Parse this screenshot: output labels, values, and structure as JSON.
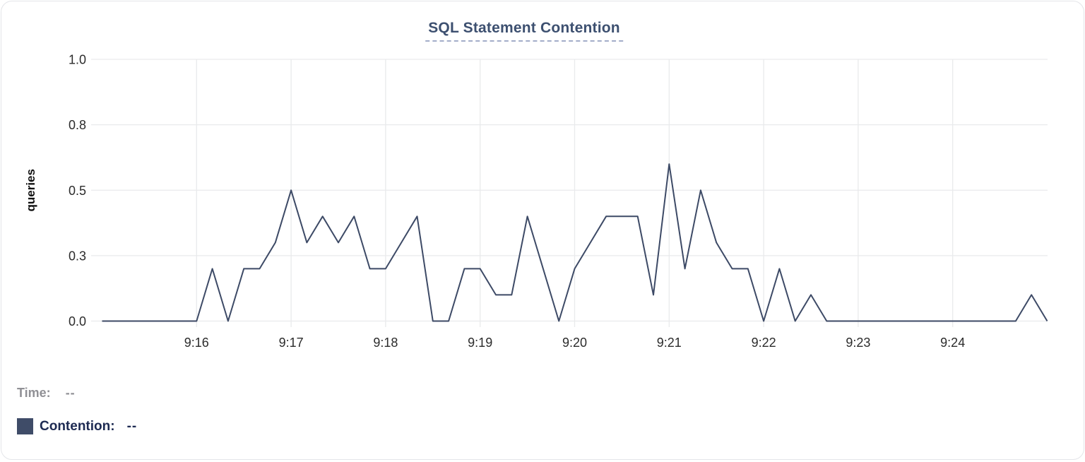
{
  "card": {
    "title": "SQL Statement Contention"
  },
  "chart_data": {
    "type": "line",
    "title": "SQL Statement Contention",
    "xlabel": "",
    "ylabel": "queries",
    "grid": true,
    "legend_position": "bottom-left",
    "series_name": "Contention",
    "ylim": [
      0,
      1
    ],
    "interval_seconds": 10,
    "x_start": "9:15:00",
    "x_end": "9:25:00",
    "y_ticks": [
      {
        "label": "0.0",
        "value": 0
      },
      {
        "label": "0.3",
        "value": 0.25
      },
      {
        "label": "0.5",
        "value": 0.5
      },
      {
        "label": "0.8",
        "value": 0.75
      },
      {
        "label": "1.0",
        "value": 1
      }
    ],
    "x_ticks": [
      {
        "label": "9:16",
        "seconds": 60
      },
      {
        "label": "9:17",
        "seconds": 120
      },
      {
        "label": "9:18",
        "seconds": 180
      },
      {
        "label": "9:19",
        "seconds": 240
      },
      {
        "label": "9:20",
        "seconds": 300
      },
      {
        "label": "9:21",
        "seconds": 360
      },
      {
        "label": "9:22",
        "seconds": 420
      },
      {
        "label": "9:23",
        "seconds": 480
      },
      {
        "label": "9:24",
        "seconds": 540
      }
    ],
    "points": [
      {
        "t": "9:15:00",
        "v": 0
      },
      {
        "t": "9:15:10",
        "v": 0
      },
      {
        "t": "9:15:20",
        "v": 0
      },
      {
        "t": "9:15:30",
        "v": 0
      },
      {
        "t": "9:15:40",
        "v": 0
      },
      {
        "t": "9:15:50",
        "v": 0
      },
      {
        "t": "9:16:00",
        "v": 0
      },
      {
        "t": "9:16:10",
        "v": 0.2
      },
      {
        "t": "9:16:20",
        "v": 0
      },
      {
        "t": "9:16:30",
        "v": 0.2
      },
      {
        "t": "9:16:40",
        "v": 0.2
      },
      {
        "t": "9:16:50",
        "v": 0.3
      },
      {
        "t": "9:17:00",
        "v": 0.5
      },
      {
        "t": "9:17:10",
        "v": 0.3
      },
      {
        "t": "9:17:20",
        "v": 0.4
      },
      {
        "t": "9:17:30",
        "v": 0.3
      },
      {
        "t": "9:17:40",
        "v": 0.4
      },
      {
        "t": "9:17:50",
        "v": 0.2
      },
      {
        "t": "9:18:00",
        "v": 0.2
      },
      {
        "t": "9:18:10",
        "v": 0.3
      },
      {
        "t": "9:18:20",
        "v": 0.4
      },
      {
        "t": "9:18:30",
        "v": 0
      },
      {
        "t": "9:18:40",
        "v": 0
      },
      {
        "t": "9:18:50",
        "v": 0.2
      },
      {
        "t": "9:19:00",
        "v": 0.2
      },
      {
        "t": "9:19:10",
        "v": 0.1
      },
      {
        "t": "9:19:20",
        "v": 0.1
      },
      {
        "t": "9:19:30",
        "v": 0.4
      },
      {
        "t": "9:19:40",
        "v": 0.2
      },
      {
        "t": "9:19:50",
        "v": 0
      },
      {
        "t": "9:20:00",
        "v": 0.2
      },
      {
        "t": "9:20:10",
        "v": 0.3
      },
      {
        "t": "9:20:20",
        "v": 0.4
      },
      {
        "t": "9:20:30",
        "v": 0.4
      },
      {
        "t": "9:20:40",
        "v": 0.4
      },
      {
        "t": "9:20:50",
        "v": 0.1
      },
      {
        "t": "9:21:00",
        "v": 0.6
      },
      {
        "t": "9:21:10",
        "v": 0.2
      },
      {
        "t": "9:21:20",
        "v": 0.5
      },
      {
        "t": "9:21:30",
        "v": 0.3
      },
      {
        "t": "9:21:40",
        "v": 0.2
      },
      {
        "t": "9:21:50",
        "v": 0.2
      },
      {
        "t": "9:22:00",
        "v": 0
      },
      {
        "t": "9:22:10",
        "v": 0.2
      },
      {
        "t": "9:22:20",
        "v": 0
      },
      {
        "t": "9:22:30",
        "v": 0.1
      },
      {
        "t": "9:22:40",
        "v": 0
      },
      {
        "t": "9:22:50",
        "v": 0
      },
      {
        "t": "9:23:00",
        "v": 0
      },
      {
        "t": "9:23:10",
        "v": 0
      },
      {
        "t": "9:23:20",
        "v": 0
      },
      {
        "t": "9:23:30",
        "v": 0
      },
      {
        "t": "9:23:40",
        "v": 0
      },
      {
        "t": "9:23:50",
        "v": 0
      },
      {
        "t": "9:24:00",
        "v": 0
      },
      {
        "t": "9:24:10",
        "v": 0
      },
      {
        "t": "9:24:20",
        "v": 0
      },
      {
        "t": "9:24:30",
        "v": 0
      },
      {
        "t": "9:24:40",
        "v": 0
      },
      {
        "t": "9:24:50",
        "v": 0.1
      },
      {
        "t": "9:25:00",
        "v": 0
      }
    ]
  },
  "legend": {
    "time_label": "Time:",
    "time_value": "--",
    "contention_label": "Contention:",
    "contention_value": "--",
    "swatch_color": "#3f4c68"
  },
  "colors": {
    "line": "#3d4a66",
    "title": "#3d5070",
    "grid": "#e9eaec",
    "tick_text": "#2b2b2b",
    "axis_title_text": "#111111",
    "time_legend_text": "#909095",
    "contention_legend_text": "#1d2a52"
  }
}
